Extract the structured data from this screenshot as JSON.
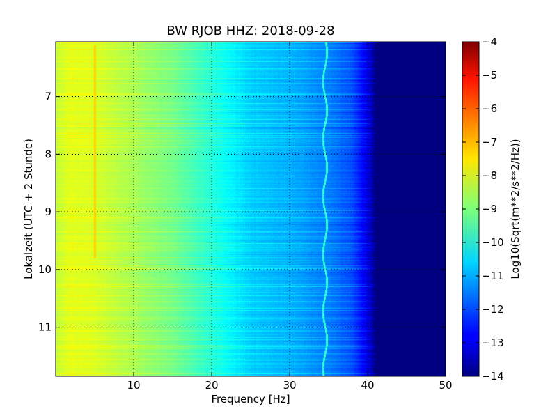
{
  "chart_data": {
    "type": "heatmap",
    "title": "BW RJOB HHZ: 2018-09-28",
    "xlabel": "Frequency [Hz]",
    "ylabel": "Lokalzeit (UTC + 2 Stunde)",
    "xlim": [
      0,
      50
    ],
    "ylim": [
      11.85,
      6.05
    ],
    "x_ticks": [
      10,
      20,
      30,
      40,
      50
    ],
    "x_tick_labels": [
      "10",
      "20",
      "30",
      "40",
      "50"
    ],
    "y_ticks": [
      7,
      8,
      9,
      10,
      11
    ],
    "y_tick_labels": [
      "7",
      "8",
      "9",
      "10",
      "11"
    ],
    "grid": true,
    "colormap": "jet",
    "colorbar": {
      "label": "Log10(Sqrt(m**2/s**2/Hz))",
      "range": [
        -14,
        -4
      ],
      "ticks": [
        -4,
        -5,
        -6,
        -7,
        -8,
        -9,
        -10,
        -11,
        -12,
        -13,
        -14
      ],
      "tick_labels": [
        "−4",
        "−5",
        "−6",
        "−7",
        "−8",
        "−9",
        "−10",
        "−11",
        "−12",
        "−13",
        "−14"
      ]
    },
    "spectrum_profile": {
      "frequency_hz": [
        0,
        2,
        5,
        10,
        15,
        20,
        25,
        30,
        35,
        38,
        40,
        41,
        50
      ],
      "log10_amplitude": [
        -8.3,
        -8.0,
        -8.1,
        -8.6,
        -9.1,
        -9.9,
        -10.7,
        -11.0,
        -11.5,
        -12.0,
        -13.0,
        -14.0,
        -14.0
      ]
    },
    "features": [
      {
        "frequency_hz": 5,
        "log10_amplitude": -7.3,
        "time_range": [
          6.1,
          9.8
        ]
      },
      {
        "frequency_hz": 34.5,
        "log10_amplitude": -9.8,
        "time_range": [
          6.05,
          11.85
        ]
      }
    ]
  }
}
